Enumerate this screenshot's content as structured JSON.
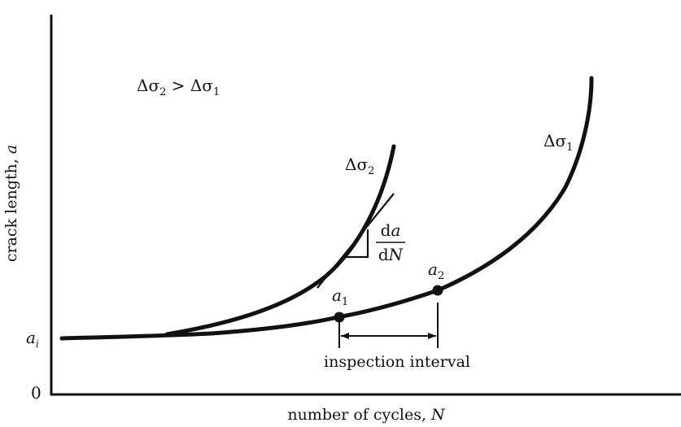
{
  "chart_data": {
    "type": "line",
    "xlabel_text": "number of cycles, ",
    "xlabel_var": "N",
    "ylabel_text": "crack length, ",
    "ylabel_var": "a",
    "y_ticks": {
      "ai": "a",
      "ai_sub": "i",
      "zero": "0"
    },
    "condition": {
      "d": "Δσ",
      "s2": "2",
      "gt": " > Δσ",
      "s1": "1"
    },
    "series": [
      {
        "name": "Δσ1",
        "symbol": "Δσ",
        "sub": "1"
      },
      {
        "name": "Δσ2",
        "symbol": "Δσ",
        "sub": "2"
      }
    ],
    "points": [
      {
        "label": "a",
        "sub": "1"
      },
      {
        "label": "a",
        "sub": "2"
      }
    ],
    "slope_label": {
      "num_d": "d",
      "num_v": "a",
      "den_d": "d",
      "den_v": "N"
    },
    "interval_label": "inspection interval"
  }
}
